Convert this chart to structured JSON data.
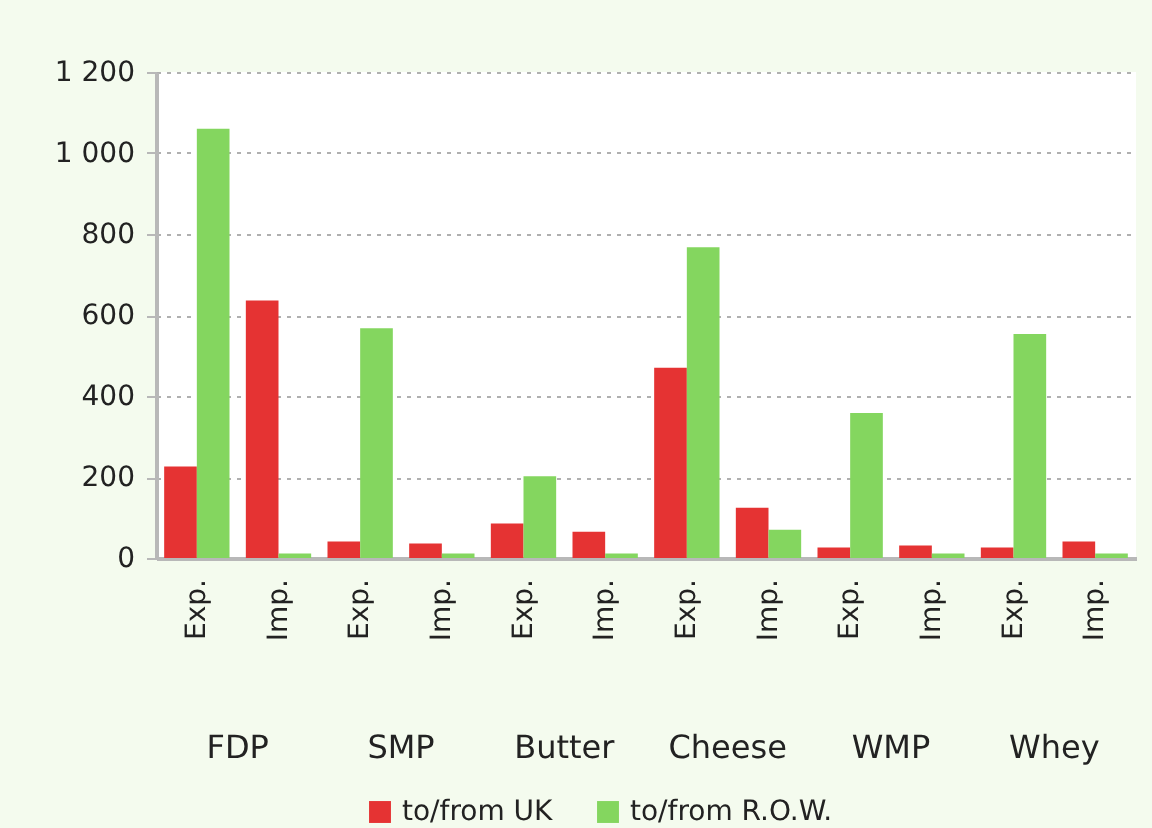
{
  "chart_data": {
    "type": "bar",
    "categories": [
      "Exp.",
      "Imp.",
      "Exp.",
      "Imp.",
      "Exp.",
      "Imp.",
      "Exp.",
      "Imp.",
      "Exp.",
      "Imp.",
      "Exp.",
      "Imp."
    ],
    "annotations": [
      "FDP",
      "SMP",
      "Butter",
      "Cheese",
      "WMP",
      "Whey"
    ],
    "series": [
      {
        "name": "to/from UK",
        "color": "#e53333",
        "values": [
          226,
          636,
          41,
          36,
          85,
          65,
          470,
          124,
          26,
          31,
          26,
          41
        ]
      },
      {
        "name": "to/from R.O.W.",
        "color": "#84d65f",
        "values": [
          1060,
          11,
          567,
          11,
          202,
          11,
          767,
          70,
          358,
          11,
          553,
          11
        ]
      }
    ],
    "ylim": [
      0,
      1200
    ],
    "yticks": [
      0,
      200,
      400,
      600,
      800,
      {
        "value": 1000,
        "label": "1 000"
      },
      {
        "value": 1200,
        "label": "1 200"
      }
    ],
    "grid": "y",
    "legend": "bottom"
  }
}
